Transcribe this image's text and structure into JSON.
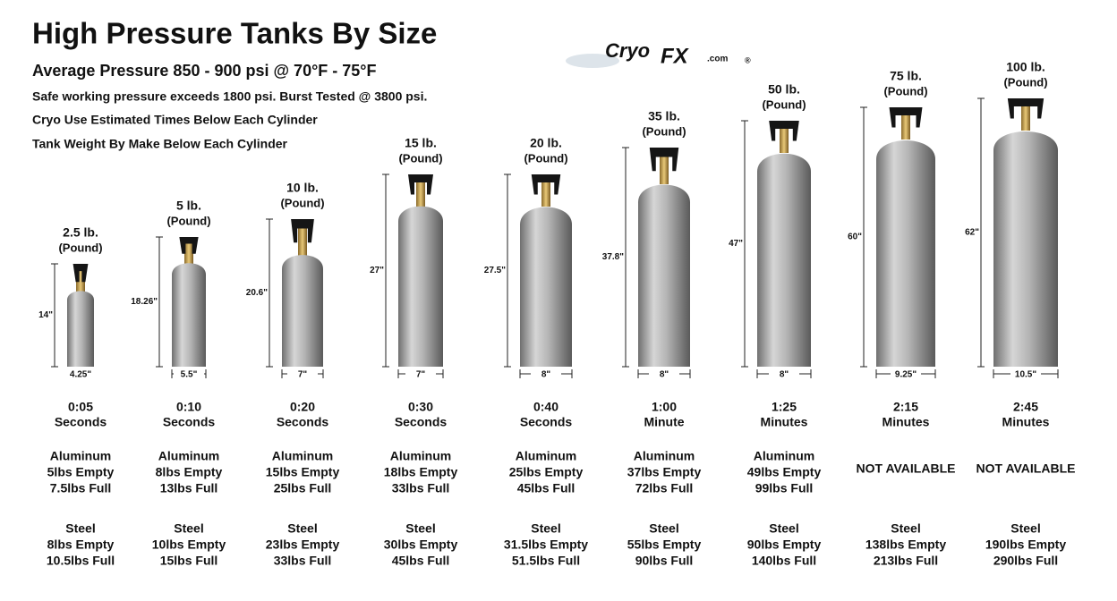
{
  "header": {
    "title": "High Pressure Tanks By Size",
    "subtitle": "Average Pressure 850 - 900 psi @ 70°F - 75°F",
    "notes": [
      "Safe working pressure exceeds 1800 psi. Burst Tested @ 3800 psi.",
      "Cryo Use Estimated Times Below Each Cylinder",
      "Tank Weight By Make Below Each Cylinder"
    ]
  },
  "logo": {
    "brand": "Cryo",
    "mark": "FX",
    "domain": ".com",
    "registered": "®"
  },
  "tanks": [
    {
      "size": "2.5 lb.",
      "unit": "(Pound)",
      "height": "14\"",
      "width": "4.25\"",
      "time": "0:05",
      "time_unit": "Seconds",
      "aluminum": [
        "Aluminum",
        "5lbs Empty",
        "7.5lbs Full"
      ],
      "steel": [
        "Steel",
        "8lbs Empty",
        "10.5lbs Full"
      ]
    },
    {
      "size": "5 lb.",
      "unit": "(Pound)",
      "height": "18.26\"",
      "width": "5.5\"",
      "time": "0:10",
      "time_unit": "Seconds",
      "aluminum": [
        "Aluminum",
        "8lbs Empty",
        "13lbs Full"
      ],
      "steel": [
        "Steel",
        "10lbs Empty",
        "15lbs Full"
      ]
    },
    {
      "size": "10 lb.",
      "unit": "(Pound)",
      "height": "20.6\"",
      "width": "7\"",
      "time": "0:20",
      "time_unit": "Seconds",
      "aluminum": [
        "Aluminum",
        "15lbs Empty",
        "25lbs Full"
      ],
      "steel": [
        "Steel",
        "23lbs Empty",
        "33lbs Full"
      ]
    },
    {
      "size": "15 lb.",
      "unit": "(Pound)",
      "height": "27\"",
      "width": "7\"",
      "time": "0:30",
      "time_unit": "Seconds",
      "aluminum": [
        "Aluminum",
        "18lbs Empty",
        "33lbs Full"
      ],
      "steel": [
        "Steel",
        "30lbs Empty",
        "45lbs Full"
      ]
    },
    {
      "size": "20 lb.",
      "unit": "(Pound)",
      "height": "27.5\"",
      "width": "8\"",
      "time": "0:40",
      "time_unit": "Seconds",
      "aluminum": [
        "Aluminum",
        "25lbs Empty",
        "45lbs Full"
      ],
      "steel": [
        "Steel",
        "31.5lbs Empty",
        "51.5lbs Full"
      ]
    },
    {
      "size": "35 lb.",
      "unit": "(Pound)",
      "height": "37.8\"",
      "width": "8\"",
      "time": "1:00",
      "time_unit": "Minute",
      "aluminum": [
        "Aluminum",
        "37lbs Empty",
        "72lbs Full"
      ],
      "steel": [
        "Steel",
        "55lbs Empty",
        "90lbs Full"
      ]
    },
    {
      "size": "50 lb.",
      "unit": "(Pound)",
      "height": "47\"",
      "width": "8\"",
      "time": "1:25",
      "time_unit": "Minutes",
      "aluminum": [
        "Aluminum",
        "49lbs Empty",
        "99lbs Full"
      ],
      "steel": [
        "Steel",
        "90lbs Empty",
        "140lbs Full"
      ]
    },
    {
      "size": "75 lb.",
      "unit": "(Pound)",
      "height": "60\"",
      "width": "9.25\"",
      "time": "2:15",
      "time_unit": "Minutes",
      "aluminum": [
        "NOT AVAILABLE"
      ],
      "steel": [
        "Steel",
        "138lbs Empty",
        "213lbs Full"
      ]
    },
    {
      "size": "100 lb.",
      "unit": "(Pound)",
      "height": "62\"",
      "width": "10.5\"",
      "time": "2:45",
      "time_unit": "Minutes",
      "aluminum": [
        "NOT AVAILABLE"
      ],
      "steel": [
        "Steel",
        "190lbs Empty",
        "290lbs Full"
      ]
    }
  ]
}
